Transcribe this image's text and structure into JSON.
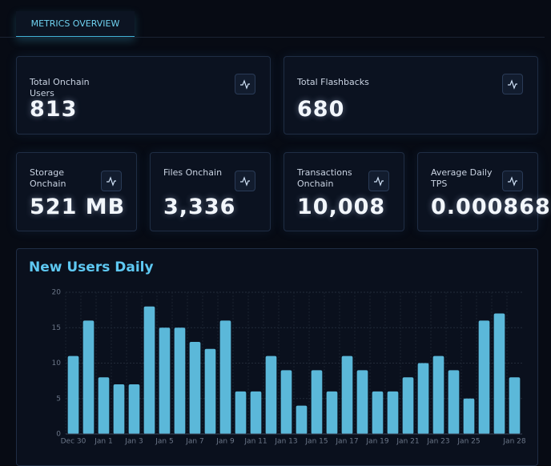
{
  "tab": {
    "label": "METRICS OVERVIEW"
  },
  "cards": [
    {
      "label": "Total Onchain Users",
      "value": "813"
    },
    {
      "label": "Total Flashbacks",
      "value": "680"
    },
    {
      "label": "Storage Onchain",
      "value": "521 MB"
    },
    {
      "label": "Files Onchain",
      "value": "3,336"
    },
    {
      "label": "Transactions Onchain",
      "value": "10,008"
    },
    {
      "label": "Average Daily TPS",
      "value": "0.000868"
    }
  ],
  "chart_data": {
    "type": "bar",
    "title": "New Users Daily",
    "categories": [
      "Dec 30",
      null,
      "Jan 1",
      null,
      "Jan 3",
      null,
      "Jan 5",
      null,
      "Jan 7",
      null,
      "Jan 9",
      null,
      "Jan 11",
      null,
      "Jan 13",
      null,
      "Jan 15",
      null,
      "Jan 17",
      null,
      "Jan 19",
      null,
      "Jan 21",
      null,
      "Jan 23",
      null,
      "Jan 25",
      null,
      null,
      "Jan 28"
    ],
    "values": [
      11,
      16,
      8,
      7,
      7,
      18,
      15,
      15,
      13,
      12,
      16,
      6,
      6,
      11,
      9,
      4,
      9,
      6,
      11,
      9,
      6,
      6,
      8,
      10,
      11,
      9,
      5,
      16,
      17,
      8
    ],
    "color": "#5bb8d9",
    "ylim": [
      0,
      20
    ],
    "yticks": [
      0,
      5,
      10,
      15,
      20
    ],
    "grid": true
  }
}
